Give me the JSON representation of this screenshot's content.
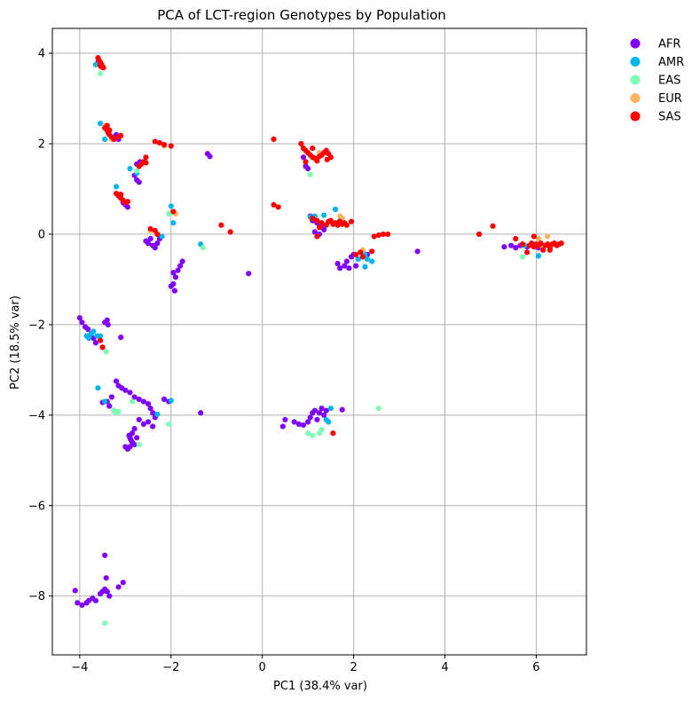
{
  "chart_data": {
    "type": "scatter",
    "title": "PCA of LCT-region Genotypes by Population",
    "xlabel": "PC1 (38.4% var)",
    "ylabel": "PC2 (18.5% var)",
    "xlim": [
      -4.6,
      7.1
    ],
    "ylim": [
      -9.3,
      4.55
    ],
    "xticks": [
      -4,
      -2,
      0,
      2,
      4,
      6
    ],
    "yticks": [
      4,
      2,
      0,
      -2,
      -4,
      -6,
      -8
    ],
    "grid": true,
    "legend_position": "outside-top-right",
    "series": [
      {
        "name": "AFR",
        "color": "#8000ff",
        "points": [
          [
            -4.05,
            -8.15
          ],
          [
            -3.95,
            -8.2
          ],
          [
            -3.85,
            -8.15
          ],
          [
            -3.8,
            -8.1
          ],
          [
            -3.72,
            -8.05
          ],
          [
            -3.65,
            -8.1
          ],
          [
            -3.55,
            -7.95
          ],
          [
            -3.5,
            -7.9
          ],
          [
            -3.45,
            -7.85
          ],
          [
            -3.4,
            -7.9
          ],
          [
            -3.42,
            -7.6
          ],
          [
            -3.45,
            -7.1
          ],
          [
            -3.35,
            -8.0
          ],
          [
            -3.15,
            -7.8
          ],
          [
            -3.05,
            -7.7
          ],
          [
            -4.1,
            -7.88
          ],
          [
            -4.0,
            -1.85
          ],
          [
            -3.95,
            -1.95
          ],
          [
            -3.88,
            -2.05
          ],
          [
            -3.82,
            -2.1
          ],
          [
            -3.75,
            -2.2
          ],
          [
            -3.7,
            -2.3
          ],
          [
            -3.4,
            -1.9
          ],
          [
            -3.45,
            -1.95
          ],
          [
            -3.38,
            -2.0
          ],
          [
            -3.1,
            -2.28
          ],
          [
            -3.65,
            -2.4
          ],
          [
            -3.2,
            -3.25
          ],
          [
            -3.15,
            -3.35
          ],
          [
            -3.08,
            -3.4
          ],
          [
            -3.0,
            -3.45
          ],
          [
            -3.3,
            -3.6
          ],
          [
            -3.4,
            -3.7
          ],
          [
            -3.5,
            -3.72
          ],
          [
            -3.35,
            -3.8
          ],
          [
            -3.25,
            -3.9
          ],
          [
            -2.9,
            -3.5
          ],
          [
            -2.8,
            -3.6
          ],
          [
            -2.7,
            -3.65
          ],
          [
            -2.6,
            -3.7
          ],
          [
            -2.5,
            -3.75
          ],
          [
            -2.45,
            -3.85
          ],
          [
            -2.4,
            -3.95
          ],
          [
            -2.35,
            -4.05
          ],
          [
            -2.4,
            -4.25
          ],
          [
            -2.5,
            -4.15
          ],
          [
            -2.6,
            -4.2
          ],
          [
            -2.7,
            -4.1
          ],
          [
            -2.8,
            -4.3
          ],
          [
            -2.85,
            -4.4
          ],
          [
            -2.9,
            -4.5
          ],
          [
            -2.85,
            -4.6
          ],
          [
            -2.9,
            -4.7
          ],
          [
            -2.95,
            -4.75
          ],
          [
            -3.0,
            -4.7
          ],
          [
            -2.8,
            -4.65
          ],
          [
            -2.75,
            -4.5
          ],
          [
            -2.88,
            -4.55
          ],
          [
            -2.92,
            -4.45
          ],
          [
            -2.15,
            -3.65
          ],
          [
            -2.05,
            -3.7
          ],
          [
            -1.35,
            -3.95
          ],
          [
            0.45,
            -4.25
          ],
          [
            0.5,
            -4.1
          ],
          [
            0.7,
            -4.15
          ],
          [
            0.8,
            -4.2
          ],
          [
            0.9,
            -4.22
          ],
          [
            1.0,
            -4.15
          ],
          [
            1.05,
            -4.05
          ],
          [
            1.1,
            -3.95
          ],
          [
            1.15,
            -3.9
          ],
          [
            1.25,
            -3.95
          ],
          [
            1.3,
            -3.85
          ],
          [
            1.4,
            -3.9
          ],
          [
            1.35,
            -4.0
          ],
          [
            1.75,
            -3.88
          ],
          [
            1.2,
            -4.1
          ],
          [
            -2.45,
            -0.1
          ],
          [
            -2.5,
            -0.2
          ],
          [
            -2.4,
            -0.25
          ],
          [
            -2.35,
            -0.3
          ],
          [
            -2.3,
            -0.2
          ],
          [
            -2.25,
            -0.1
          ],
          [
            -2.55,
            -0.15
          ],
          [
            -1.95,
            -0.85
          ],
          [
            -1.9,
            -0.95
          ],
          [
            -1.85,
            -0.8
          ],
          [
            -1.8,
            -0.7
          ],
          [
            -1.75,
            -0.6
          ],
          [
            -1.95,
            -1.1
          ],
          [
            -1.92,
            -1.25
          ],
          [
            -2.0,
            -1.15
          ],
          [
            -0.3,
            -0.87
          ],
          [
            -2.8,
            1.3
          ],
          [
            -2.75,
            1.2
          ],
          [
            -2.7,
            1.15
          ],
          [
            -2.75,
            1.55
          ],
          [
            -2.68,
            1.6
          ],
          [
            -1.2,
            1.78
          ],
          [
            -1.15,
            1.72
          ],
          [
            -3.1,
            0.8
          ],
          [
            -3.05,
            0.7
          ],
          [
            -3.0,
            0.65
          ],
          [
            -2.95,
            0.6
          ],
          [
            -3.15,
            2.1
          ],
          [
            -3.2,
            2.2
          ],
          [
            -3.6,
            3.8
          ],
          [
            -3.52,
            3.7
          ],
          [
            0.9,
            1.7
          ],
          [
            0.95,
            1.5
          ],
          [
            1.0,
            1.45
          ],
          [
            1.05,
            0.4
          ],
          [
            1.1,
            0.3
          ],
          [
            1.2,
            0.25
          ],
          [
            1.3,
            0.2
          ],
          [
            1.35,
            0.1
          ],
          [
            1.25,
            0.0
          ],
          [
            1.15,
            0.05
          ],
          [
            1.65,
            -0.65
          ],
          [
            1.7,
            -0.75
          ],
          [
            1.8,
            -0.7
          ],
          [
            1.85,
            -0.6
          ],
          [
            1.9,
            -0.75
          ],
          [
            1.95,
            -0.5
          ],
          [
            2.0,
            -0.45
          ],
          [
            2.05,
            -0.7
          ],
          [
            2.1,
            -0.55
          ],
          [
            2.2,
            -0.4
          ],
          [
            2.3,
            -0.45
          ],
          [
            3.4,
            -0.38
          ],
          [
            5.3,
            -0.28
          ],
          [
            5.45,
            -0.25
          ],
          [
            5.55,
            -0.3
          ],
          [
            5.65,
            -0.25
          ],
          [
            5.8,
            -0.28
          ],
          [
            6.05,
            -0.3
          ]
        ]
      },
      {
        "name": "AMR",
        "color": "#00b5eb",
        "points": [
          [
            -3.85,
            -2.25
          ],
          [
            -3.8,
            -2.3
          ],
          [
            -3.75,
            -2.2
          ],
          [
            -3.7,
            -2.15
          ],
          [
            -3.62,
            -2.25
          ],
          [
            -3.55,
            -2.25
          ],
          [
            -3.6,
            -3.4
          ],
          [
            -3.45,
            -3.7
          ],
          [
            -2.3,
            -3.98
          ],
          [
            -3.65,
            3.75
          ],
          [
            -3.55,
            2.45
          ],
          [
            -3.45,
            2.1
          ],
          [
            -3.2,
            1.05
          ],
          [
            -2.9,
            1.45
          ],
          [
            -2.75,
            1.35
          ],
          [
            -2.0,
            0.62
          ],
          [
            -1.95,
            0.25
          ],
          [
            -2.2,
            -0.05
          ],
          [
            -1.35,
            -0.22
          ],
          [
            -2.0,
            -3.68
          ],
          [
            1.05,
            0.38
          ],
          [
            1.15,
            0.4
          ],
          [
            1.35,
            0.42
          ],
          [
            1.6,
            0.55
          ],
          [
            1.7,
            0.3
          ],
          [
            1.4,
            -4.1
          ],
          [
            1.45,
            -4.15
          ],
          [
            1.5,
            -3.85
          ],
          [
            2.25,
            -0.45
          ],
          [
            2.3,
            -0.55
          ],
          [
            2.4,
            -0.6
          ],
          [
            2.25,
            -0.72
          ],
          [
            2.1,
            -0.55
          ],
          [
            6.05,
            -0.48
          ],
          [
            5.75,
            -0.25
          ]
        ]
      },
      {
        "name": "EAS",
        "color": "#80ffb4",
        "points": [
          [
            -3.45,
            -8.6
          ],
          [
            -3.5,
            -2.5
          ],
          [
            -3.42,
            -2.6
          ],
          [
            -3.25,
            -3.9
          ],
          [
            -3.2,
            -3.95
          ],
          [
            -3.15,
            -3.92
          ],
          [
            -2.7,
            -4.65
          ],
          [
            -2.05,
            -4.2
          ],
          [
            -2.85,
            -3.7
          ],
          [
            -3.55,
            3.55
          ],
          [
            -2.75,
            1.4
          ],
          [
            -2.05,
            0.45
          ],
          [
            -2.0,
            0.48
          ],
          [
            -1.3,
            -0.3
          ],
          [
            1.0,
            -4.4
          ],
          [
            1.1,
            -4.45
          ],
          [
            1.25,
            -4.4
          ],
          [
            1.3,
            -4.32
          ],
          [
            2.55,
            -3.85
          ],
          [
            1.05,
            1.32
          ],
          [
            5.7,
            -0.5
          ]
        ]
      },
      {
        "name": "EUR",
        "color": "#ffb360",
        "points": [
          [
            -3.45,
            2.4
          ],
          [
            -3.3,
            2.1
          ],
          [
            -2.45,
            0.08
          ],
          [
            -2.15,
            1.95
          ],
          [
            1.25,
            1.8
          ],
          [
            1.7,
            0.4
          ],
          [
            1.75,
            0.35
          ],
          [
            2.2,
            -0.35
          ],
          [
            6.05,
            -0.1
          ],
          [
            6.25,
            -0.05
          ],
          [
            6.1,
            -0.25
          ],
          [
            -1.9,
            0.45
          ]
        ]
      },
      {
        "name": "SAS",
        "color": "#ff0000",
        "points": [
          [
            -3.6,
            3.9
          ],
          [
            -3.58,
            3.85
          ],
          [
            -3.55,
            3.8
          ],
          [
            -3.52,
            3.75
          ],
          [
            -3.5,
            3.7
          ],
          [
            -3.48,
            3.68
          ],
          [
            -3.55,
            3.72
          ],
          [
            -3.45,
            2.35
          ],
          [
            -3.4,
            2.3
          ],
          [
            -3.38,
            2.25
          ],
          [
            -3.35,
            2.2
          ],
          [
            -3.3,
            2.15
          ],
          [
            -3.25,
            2.1
          ],
          [
            -3.4,
            2.4
          ],
          [
            -3.35,
            2.3
          ],
          [
            -3.1,
            2.18
          ],
          [
            -3.15,
            2.15
          ],
          [
            -2.55,
            1.7
          ],
          [
            -2.6,
            1.6
          ],
          [
            -2.65,
            1.55
          ],
          [
            -2.55,
            1.58
          ],
          [
            -2.7,
            1.5
          ],
          [
            -3.2,
            0.9
          ],
          [
            -3.15,
            0.85
          ],
          [
            -3.1,
            0.8
          ],
          [
            -3.05,
            0.75
          ],
          [
            -3.0,
            0.7
          ],
          [
            -2.95,
            0.72
          ],
          [
            -3.1,
            0.88
          ],
          [
            -2.35,
            2.05
          ],
          [
            -2.25,
            2.02
          ],
          [
            -2.15,
            1.98
          ],
          [
            -2.0,
            1.95
          ],
          [
            -2.45,
            0.12
          ],
          [
            -2.35,
            0.08
          ],
          [
            -2.3,
            0.0
          ],
          [
            -1.95,
            0.5
          ],
          [
            -0.9,
            0.2
          ],
          [
            -0.7,
            0.05
          ],
          [
            0.25,
            2.1
          ],
          [
            0.25,
            0.65
          ],
          [
            0.35,
            0.6
          ],
          [
            -3.55,
            -2.35
          ],
          [
            -3.5,
            -2.5
          ],
          [
            0.85,
            2.0
          ],
          [
            0.9,
            1.9
          ],
          [
            0.95,
            1.85
          ],
          [
            1.0,
            1.8
          ],
          [
            1.05,
            1.75
          ],
          [
            1.1,
            1.7
          ],
          [
            1.15,
            1.68
          ],
          [
            1.2,
            1.62
          ],
          [
            1.25,
            1.72
          ],
          [
            1.3,
            1.75
          ],
          [
            1.35,
            1.8
          ],
          [
            1.4,
            1.85
          ],
          [
            1.45,
            1.78
          ],
          [
            1.5,
            1.7
          ],
          [
            1.42,
            1.65
          ],
          [
            1.1,
            1.9
          ],
          [
            0.95,
            1.6
          ],
          [
            1.1,
            0.35
          ],
          [
            1.2,
            0.3
          ],
          [
            1.3,
            0.25
          ],
          [
            1.4,
            0.2
          ],
          [
            1.45,
            0.28
          ],
          [
            1.5,
            0.3
          ],
          [
            1.55,
            0.22
          ],
          [
            1.6,
            0.25
          ],
          [
            1.65,
            0.2
          ],
          [
            1.7,
            0.28
          ],
          [
            1.75,
            0.22
          ],
          [
            1.8,
            0.25
          ],
          [
            1.85,
            0.2
          ],
          [
            1.95,
            0.28
          ],
          [
            1.25,
            0.15
          ],
          [
            1.2,
            -0.05
          ],
          [
            1.55,
            -4.4
          ],
          [
            2.05,
            -0.45
          ],
          [
            2.15,
            -0.4
          ],
          [
            2.2,
            -0.5
          ],
          [
            2.45,
            -0.05
          ],
          [
            2.55,
            -0.02
          ],
          [
            2.65,
            0.0
          ],
          [
            2.75,
            0.0
          ],
          [
            2.4,
            -0.38
          ],
          [
            4.75,
            0.0
          ],
          [
            5.05,
            0.18
          ],
          [
            5.55,
            -0.1
          ],
          [
            5.7,
            -0.22
          ],
          [
            5.8,
            -0.4
          ],
          [
            5.85,
            -0.25
          ],
          [
            5.9,
            -0.2
          ],
          [
            5.95,
            -0.28
          ],
          [
            6.0,
            -0.22
          ],
          [
            6.05,
            -0.25
          ],
          [
            6.1,
            -0.2
          ],
          [
            6.15,
            -0.35
          ],
          [
            6.2,
            -0.25
          ],
          [
            6.25,
            -0.22
          ],
          [
            6.3,
            -0.3
          ],
          [
            6.35,
            -0.22
          ],
          [
            6.4,
            -0.2
          ],
          [
            6.45,
            -0.25
          ],
          [
            6.5,
            -0.22
          ],
          [
            6.55,
            -0.2
          ],
          [
            5.95,
            -0.05
          ],
          [
            6.3,
            -0.35
          ]
        ]
      }
    ]
  }
}
